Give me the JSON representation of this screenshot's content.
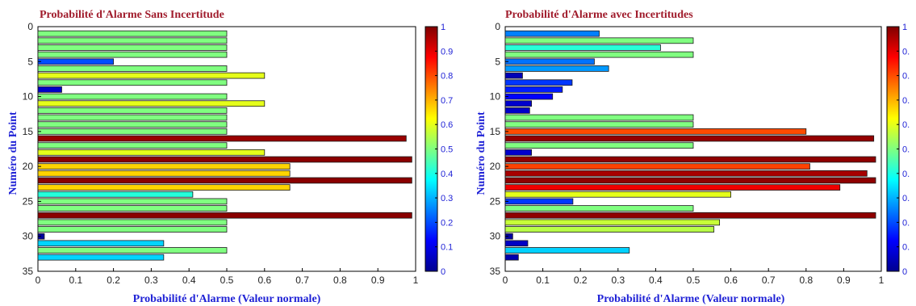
{
  "chart_data": [
    {
      "type": "bar",
      "orientation": "horizontal",
      "title": "Probabilité d'Alarme Sans Incertitude",
      "xlabel": "Probabilité d'Alarme (Valeur normale)",
      "ylabel": "Numéro du Point",
      "xlim": [
        0,
        1
      ],
      "ylim": [
        0,
        35
      ],
      "y_reversed": true,
      "xticks": [
        "0",
        "0.1",
        "0.2",
        "0.3",
        "0.4",
        "0.5",
        "0.6",
        "0.7",
        "0.8",
        "0.9",
        "1"
      ],
      "yticks": [
        "0",
        "5",
        "10",
        "15",
        "20",
        "25",
        "30",
        "35"
      ],
      "colorbar": {
        "ticks": [
          "0",
          "0.1",
          "0.2",
          "0.3",
          "0.4",
          "0.5",
          "0.6",
          "0.7",
          "0.8",
          "0.9",
          "1"
        ],
        "colormap": "jet"
      },
      "categories": [
        1,
        2,
        3,
        4,
        5,
        6,
        7,
        8,
        9,
        10,
        11,
        12,
        13,
        14,
        15,
        16,
        17,
        18,
        19,
        20,
        21,
        22,
        23,
        24,
        25,
        26,
        27,
        28,
        29,
        30,
        31,
        32,
        33
      ],
      "values": [
        0.5,
        0.5,
        0.5,
        0.5,
        0.2,
        0.5,
        0.6,
        0.5,
        0.063,
        0.5,
        0.6,
        0.5,
        0.5,
        0.5,
        0.5,
        0.975,
        0.5,
        0.6,
        0.99,
        0.667,
        0.667,
        0.99,
        0.667,
        0.41,
        0.5,
        0.5,
        0.99,
        0.5,
        0.5,
        0.017,
        0.333,
        0.5,
        0.333
      ]
    },
    {
      "type": "bar",
      "orientation": "horizontal",
      "title": "Probabilité d'Alarme avec Incertitudes",
      "xlabel": "Probabilité d'Alarme (Valeur normale)",
      "ylabel": "Numéro du Point",
      "xlim": [
        0,
        1
      ],
      "ylim": [
        0,
        35
      ],
      "y_reversed": true,
      "xticks": [
        "0",
        "0.1",
        "0.2",
        "0.3",
        "0.4",
        "0.5",
        "0.6",
        "0.7",
        "0.8",
        "0.9",
        "1"
      ],
      "yticks": [
        "0",
        "5",
        "10",
        "15",
        "20",
        "25",
        "30",
        "35"
      ],
      "colorbar": {
        "ticks": [
          "0",
          "0.",
          "0.",
          "0.",
          "0.",
          "0.",
          "0.",
          "0.",
          "0.",
          "0.",
          "1"
        ],
        "colormap": "jet"
      },
      "categories": [
        1,
        2,
        3,
        4,
        5,
        6,
        7,
        8,
        9,
        10,
        11,
        12,
        13,
        14,
        15,
        16,
        17,
        18,
        19,
        20,
        21,
        22,
        23,
        24,
        25,
        26,
        27,
        28,
        29,
        30,
        31,
        32,
        33
      ],
      "values": [
        0.25,
        0.5,
        0.413,
        0.5,
        0.237,
        0.275,
        0.046,
        0.178,
        0.152,
        0.126,
        0.07,
        0.065,
        0.5,
        0.5,
        0.8,
        0.98,
        0.5,
        0.07,
        0.985,
        0.81,
        0.962,
        0.985,
        0.89,
        0.6,
        0.18,
        0.5,
        0.985,
        0.57,
        0.555,
        0.02,
        0.06,
        0.33,
        0.035
      ]
    }
  ]
}
